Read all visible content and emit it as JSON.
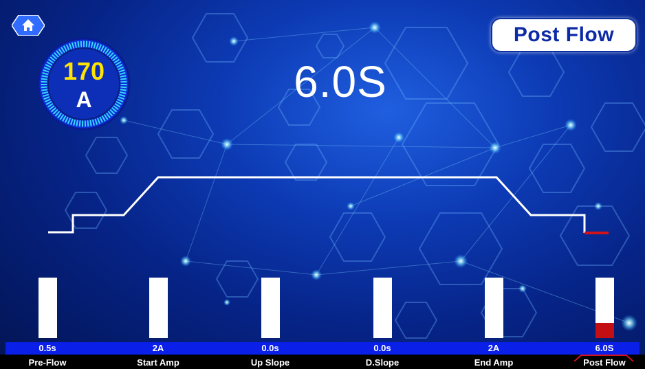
{
  "header": {
    "home_icon": "home-icon",
    "title": "Post Flow"
  },
  "gauge": {
    "value": "170",
    "unit": "A"
  },
  "current_value": "6.0S",
  "colors": {
    "accent_yellow": "#ffe400",
    "active_red": "#c30f12",
    "strip_blue": "#0a1fe8",
    "title_text": "#0c2aa6"
  },
  "parameters": [
    {
      "label": "Pre-Flow",
      "value": "0.5s",
      "level": 1.0,
      "active": false
    },
    {
      "label": "Start Amp",
      "value": "2A",
      "level": 1.0,
      "active": false
    },
    {
      "label": "Up Slope",
      "value": "0.0s",
      "level": 1.0,
      "active": false
    },
    {
      "label": "D.Slope",
      "value": "0.0s",
      "level": 1.0,
      "active": false
    },
    {
      "label": "End Amp",
      "value": "2A",
      "level": 1.0,
      "active": false
    },
    {
      "label": "Post Flow",
      "value": "6.0S",
      "level": 0.25,
      "active": true
    }
  ]
}
